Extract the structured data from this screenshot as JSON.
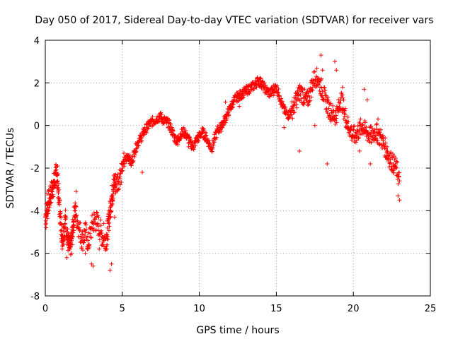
{
  "chart_data": {
    "type": "scatter",
    "title": "Day 050 of 2017, Sidereal Day-to-day VTEC variation (SDTVAR) for receiver vars",
    "xlabel": "GPS time / hours",
    "ylabel": "SDTVAR / TECUs",
    "xlim": [
      0,
      25
    ],
    "ylim": [
      -8,
      4
    ],
    "xticks": [
      "0",
      "5",
      "10",
      "15",
      "20",
      "25"
    ],
    "yticks": [
      "-8",
      "-6",
      "-4",
      "-2",
      "0",
      "2",
      "4"
    ],
    "grid": true,
    "marker": "+",
    "series": [
      {
        "name": "SDTVAR",
        "color": "#ff0000",
        "x": [
          0.0,
          0.1,
          0.2,
          0.3,
          0.4,
          0.5,
          0.6,
          0.7,
          0.8,
          0.9,
          1.0,
          1.1,
          1.2,
          1.3,
          1.4,
          1.5,
          1.6,
          1.7,
          1.8,
          1.9,
          2.0,
          2.2,
          2.4,
          2.6,
          2.8,
          3.0,
          3.2,
          3.4,
          3.6,
          3.8,
          4.0,
          4.1,
          4.2,
          4.3,
          4.4,
          4.5,
          4.6,
          4.8,
          5.0,
          5.2,
          5.4,
          5.6,
          5.8,
          6.0,
          6.2,
          6.4,
          6.6,
          6.8,
          7.0,
          7.2,
          7.4,
          7.6,
          7.8,
          8.0,
          8.2,
          8.4,
          8.6,
          8.8,
          9.0,
          9.2,
          9.4,
          9.6,
          9.8,
          10.0,
          10.2,
          10.4,
          10.6,
          10.8,
          11.0,
          11.2,
          11.4,
          11.6,
          11.8,
          12.0,
          12.2,
          12.4,
          12.6,
          12.8,
          13.0,
          13.2,
          13.4,
          13.6,
          13.8,
          14.0,
          14.2,
          14.4,
          14.6,
          14.8,
          15.0,
          15.2,
          15.4,
          15.6,
          15.8,
          16.0,
          16.2,
          16.4,
          16.6,
          16.8,
          17.0,
          17.2,
          17.4,
          17.6,
          17.8,
          18.0,
          18.2,
          18.4,
          18.6,
          18.8,
          19.0,
          19.2,
          19.4,
          19.6,
          19.8,
          20.0,
          20.2,
          20.4,
          20.6,
          20.8,
          21.0,
          21.2,
          21.4,
          21.6,
          21.8,
          22.0,
          22.2,
          22.4,
          22.6,
          22.8,
          23.0
        ],
        "y": [
          -4.3,
          -4.0,
          -3.6,
          -3.4,
          -3.1,
          -2.9,
          -2.6,
          -2.3,
          -2.6,
          -3.6,
          -4.6,
          -5.2,
          -5.0,
          -4.4,
          -5.0,
          -5.6,
          -5.8,
          -5.4,
          -4.8,
          -4.0,
          -4.2,
          -4.8,
          -5.4,
          -5.0,
          -5.6,
          -4.8,
          -4.4,
          -4.6,
          -5.0,
          -5.4,
          -5.2,
          -4.6,
          -4.0,
          -3.4,
          -3.0,
          -2.6,
          -2.8,
          -2.4,
          -2.0,
          -1.6,
          -1.4,
          -1.8,
          -1.2,
          -0.8,
          -0.6,
          -0.3,
          -0.1,
          0.1,
          0.2,
          0.3,
          0.4,
          0.3,
          0.2,
          0.1,
          -0.2,
          -0.6,
          -0.7,
          -0.4,
          -0.3,
          -0.5,
          -0.8,
          -1.0,
          -0.7,
          -0.5,
          -0.3,
          -0.5,
          -0.8,
          -1.1,
          -0.6,
          -0.2,
          -0.1,
          0.2,
          0.5,
          0.8,
          1.1,
          1.3,
          1.4,
          1.5,
          1.6,
          1.7,
          1.8,
          1.9,
          2.1,
          2.0,
          1.8,
          1.6,
          1.5,
          1.7,
          1.8,
          1.4,
          0.9,
          0.6,
          0.5,
          0.7,
          1.0,
          1.4,
          1.6,
          1.3,
          1.1,
          1.6,
          2.1,
          2.3,
          2.0,
          1.6,
          1.2,
          0.8,
          0.6,
          0.4,
          0.7,
          1.3,
          0.7,
          0.1,
          -0.2,
          -0.5,
          -0.4,
          -0.2,
          0.0,
          -0.3,
          -0.4,
          -0.5,
          -0.3,
          -0.4,
          -0.6,
          -0.9,
          -1.3,
          -1.6,
          -1.8,
          -2.0,
          -2.6
        ]
      }
    ],
    "outliers": {
      "x": [
        0.05,
        0.1,
        0.6,
        0.7,
        0.8,
        1.1,
        1.4,
        1.7,
        2.0,
        2.6,
        3.0,
        3.1,
        3.5,
        3.8,
        4.0,
        4.2,
        4.3,
        4.5,
        5.1,
        5.4,
        6.3,
        7.5,
        8.6,
        9.3,
        11.7,
        12.6,
        14.0,
        14.8,
        15.5,
        16.3,
        16.5,
        17.5,
        17.9,
        18.0,
        18.3,
        18.8,
        18.9,
        19.3,
        20.4,
        20.7,
        20.9,
        21.1,
        21.6,
        22.2,
        22.6,
        22.9,
        23.0
      ],
      "y": [
        -4.8,
        -3.2,
        -2.8,
        -2.3,
        -1.9,
        -5.8,
        -6.2,
        -6.0,
        -3.1,
        -6.0,
        -6.5,
        -6.6,
        -5.8,
        -4.6,
        -5.8,
        -6.8,
        -6.5,
        -4.3,
        -1.3,
        -1.6,
        -2.2,
        0.6,
        -0.9,
        -1.0,
        1.1,
        0.9,
        2.2,
        1.4,
        -0.1,
        1.0,
        -1.2,
        0.0,
        3.3,
        2.6,
        -1.8,
        3.0,
        2.6,
        1.8,
        -1.2,
        1.7,
        1.2,
        -1.8,
        0.3,
        -1.0,
        -2.1,
        -3.3,
        -3.5
      ]
    }
  }
}
